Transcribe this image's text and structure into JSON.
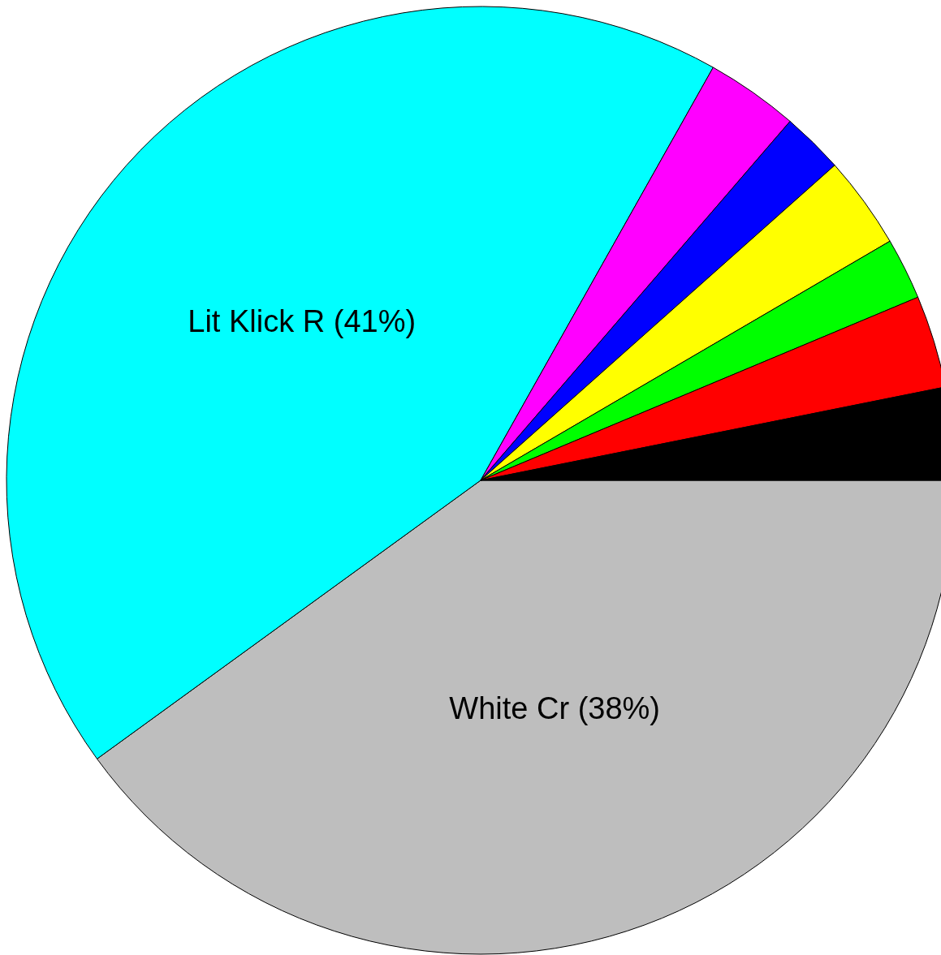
{
  "chart_data": {
    "type": "pie",
    "categories": [
      "White Cr",
      "Lit Klick R",
      null,
      null,
      null,
      null,
      null,
      null
    ],
    "values": [
      38,
      41,
      3,
      2,
      3,
      2,
      3,
      3
    ],
    "value_labels": [
      "(38%)",
      "(41%)",
      null,
      null,
      null,
      null,
      null,
      null
    ],
    "colors": [
      "#bebebe",
      "#00ffff",
      "#ff00ff",
      "#0000ff",
      "#ffff00",
      "#00ff00",
      "#ff0000",
      "#000000"
    ],
    "legend": false
  }
}
